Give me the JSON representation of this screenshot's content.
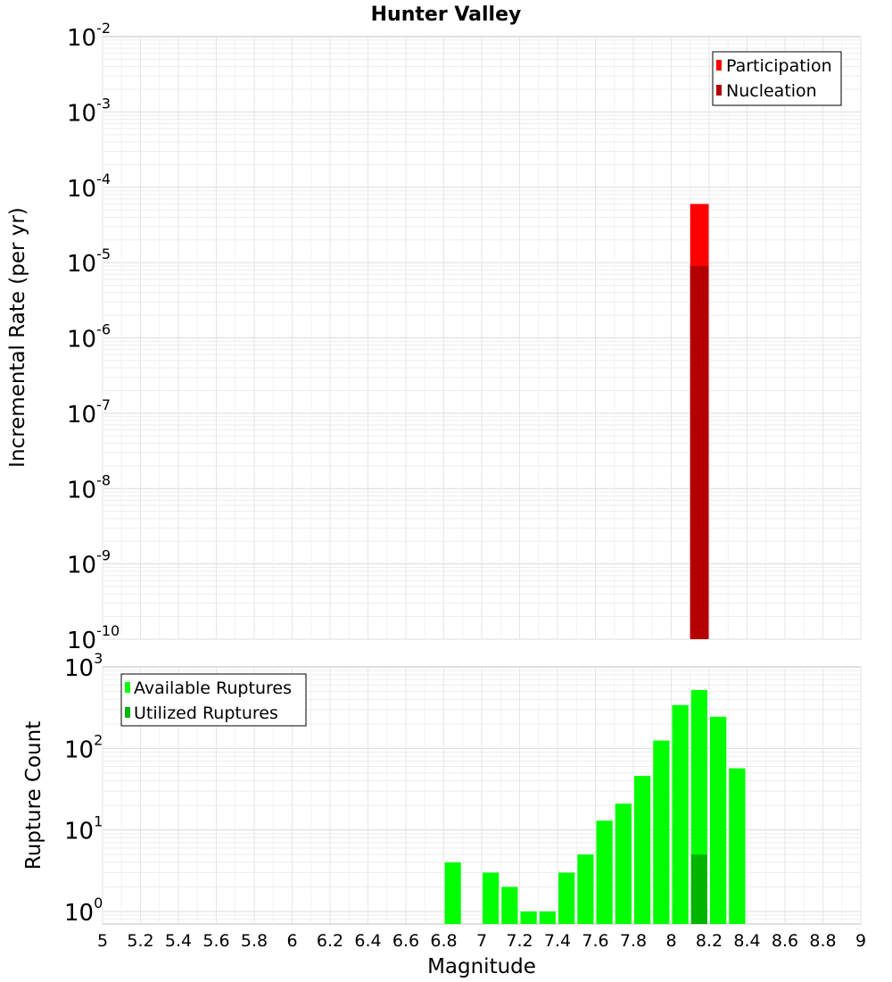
{
  "chart_data": [
    {
      "type": "bar",
      "title": "Hunter Valley",
      "ylabel": "Incremental Rate (per yr)",
      "yscale": "log",
      "ylim": [
        1e-10,
        0.01
      ],
      "xlim": [
        5,
        9
      ],
      "y_ticks": [
        {
          "base": "10",
          "exp": "-2"
        },
        {
          "base": "10",
          "exp": "-3"
        },
        {
          "base": "10",
          "exp": "-4"
        },
        {
          "base": "10",
          "exp": "-5"
        },
        {
          "base": "10",
          "exp": "-6"
        },
        {
          "base": "10",
          "exp": "-7"
        },
        {
          "base": "10",
          "exp": "-8"
        },
        {
          "base": "10",
          "exp": "-9"
        },
        {
          "base": "10",
          "exp": "-10"
        }
      ],
      "legend_position": "top-right",
      "series": [
        {
          "name": "Participation",
          "color": "#ff0000",
          "x": [
            8.15
          ],
          "values": [
            6e-05
          ]
        },
        {
          "name": "Nucleation",
          "color": "#b40000",
          "x": [
            8.15
          ],
          "values": [
            9e-06
          ]
        }
      ]
    },
    {
      "type": "bar",
      "xlabel": "Magnitude",
      "ylabel": "Rupture Count",
      "yscale": "log",
      "ylim": [
        0.8,
        1000
      ],
      "xlim": [
        5,
        9
      ],
      "y_ticks": [
        {
          "value": 1000,
          "base": "10",
          "exp": "3"
        },
        {
          "value": 100,
          "base": "10",
          "exp": "2"
        },
        {
          "value": 10,
          "base": "10",
          "exp": "1"
        },
        {
          "value": 1,
          "base": "10",
          "exp": "0"
        }
      ],
      "x_ticks": [
        "5",
        "5.2",
        "5.4",
        "5.6",
        "5.8",
        "6",
        "6.2",
        "6.4",
        "6.6",
        "6.8",
        "7",
        "7.2",
        "7.4",
        "7.6",
        "7.8",
        "8",
        "8.2",
        "8.4",
        "8.6",
        "8.8",
        "9"
      ],
      "legend_position": "top-left",
      "series": [
        {
          "name": "Available Ruptures",
          "color": "#00ff00",
          "x": [
            6.85,
            7.05,
            7.15,
            7.25,
            7.35,
            7.45,
            7.55,
            7.65,
            7.75,
            7.85,
            7.95,
            8.05,
            8.15,
            8.25,
            8.35
          ],
          "values": [
            4,
            3,
            2,
            1,
            1,
            3,
            5,
            13,
            21,
            46,
            125,
            340,
            520,
            245,
            57
          ]
        },
        {
          "name": "Utilized Ruptures",
          "color": "#00b400",
          "x": [
            8.15
          ],
          "values": [
            5
          ]
        }
      ]
    }
  ]
}
